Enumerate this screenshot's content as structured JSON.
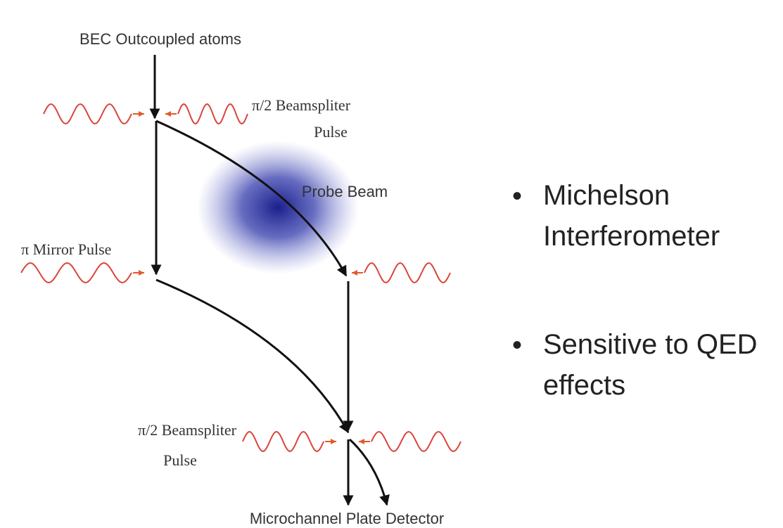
{
  "diagram": {
    "source_label": "BEC Outcoupled atoms",
    "top_pulse": [
      "π/2 Beamspliter",
      "Pulse"
    ],
    "probe_label": "Probe Beam",
    "mirror_pulse": "π Mirror Pulse",
    "bottom_pulse": [
      "π/2 Beamspliter",
      "Pulse"
    ],
    "detector_label": "Microchannel Plate Detector"
  },
  "bullets": [
    [
      "Michelson",
      "Interferometer"
    ],
    [
      "Sensitive to QED",
      "effects"
    ]
  ]
}
